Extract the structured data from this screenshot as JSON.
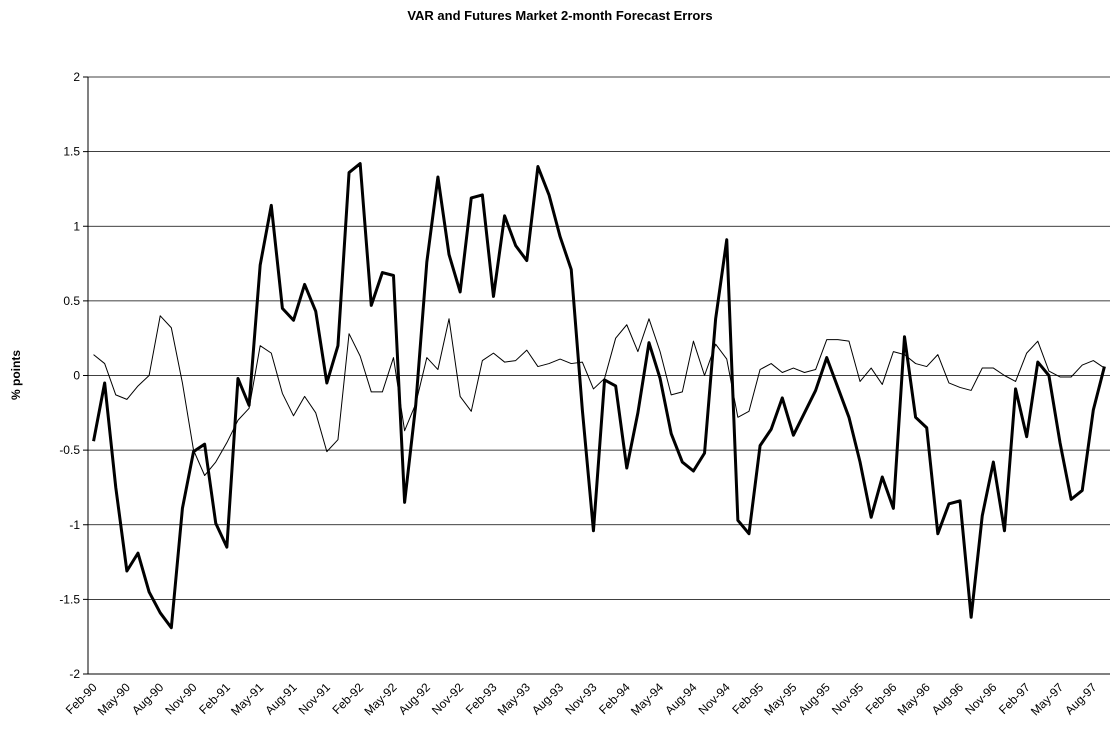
{
  "chart_data": {
    "type": "line",
    "title": "VAR and Futures Market 2-month Forecast Errors",
    "y_label": "% points",
    "categories": [
      "Feb-90",
      null,
      null,
      "May-90",
      null,
      null,
      "Aug-90",
      null,
      null,
      "Nov-90",
      null,
      null,
      "Feb-91",
      null,
      null,
      "May-91",
      null,
      null,
      "Aug-91",
      null,
      null,
      "Nov-91",
      null,
      null,
      "Feb-92",
      null,
      null,
      "May-92",
      null,
      null,
      "Aug-92",
      null,
      null,
      "Nov-92",
      null,
      null,
      "Feb-93",
      null,
      null,
      "May-93",
      null,
      null,
      "Aug-93",
      null,
      null,
      "Nov-93",
      null,
      null,
      "Feb-94",
      null,
      null,
      "May-94",
      null,
      null,
      "Aug-94",
      null,
      null,
      "Nov-94",
      null,
      null,
      "Feb-95",
      null,
      null,
      "May-95",
      null,
      null,
      "Aug-95",
      null,
      null,
      "Nov-95",
      null,
      null,
      "Feb-96",
      null,
      null,
      "May-96",
      null,
      null,
      "Aug-96",
      null,
      null,
      "Nov-96",
      null,
      null,
      "Feb-97",
      null,
      null,
      "May-97",
      null,
      null,
      "Aug-97",
      null
    ],
    "series": [
      {
        "color": "#000000",
        "width": 3,
        "values": [
          -0.44,
          -0.05,
          -0.75,
          -1.31,
          -1.19,
          -1.45,
          -1.59,
          -1.69,
          -0.89,
          -0.51,
          -0.46,
          -0.99,
          -1.15,
          -0.02,
          -0.2,
          0.74,
          1.14,
          0.45,
          0.37,
          0.61,
          0.43,
          -0.05,
          0.2,
          1.36,
          1.42,
          0.47,
          0.69,
          0.67,
          -0.85,
          -0.2,
          0.76,
          1.33,
          0.81,
          0.56,
          1.19,
          1.21,
          0.53,
          1.07,
          0.87,
          0.77,
          1.4,
          1.21,
          0.93,
          0.71,
          -0.23,
          -1.04,
          -0.03,
          -0.07,
          -0.62,
          -0.25,
          0.22,
          -0.02,
          -0.39,
          -0.58,
          -0.64,
          -0.52,
          0.38,
          0.91,
          -0.97,
          -1.06,
          -0.47,
          -0.36,
          -0.15,
          -0.4,
          -0.25,
          -0.1,
          0.12,
          -0.08,
          -0.28,
          -0.58,
          -0.95,
          -0.68,
          -0.89,
          0.26,
          -0.28,
          -0.35,
          -1.06,
          -0.86,
          -0.84,
          -1.62,
          -0.94,
          -0.58,
          -1.04,
          -0.09,
          -0.41,
          0.09,
          0.0,
          -0.45,
          -0.83,
          -0.77,
          -0.23,
          0.06
        ]
      },
      {
        "color": "#000000",
        "width": 1,
        "values": [
          0.14,
          0.08,
          -0.13,
          -0.16,
          -0.07,
          0.0,
          0.4,
          0.32,
          -0.05,
          -0.5,
          -0.67,
          -0.58,
          -0.45,
          -0.3,
          -0.22,
          0.2,
          0.15,
          -0.12,
          -0.27,
          -0.14,
          -0.25,
          -0.51,
          -0.43,
          0.28,
          0.13,
          -0.11,
          -0.11,
          0.12,
          -0.37,
          -0.19,
          0.12,
          0.04,
          0.38,
          -0.14,
          -0.24,
          0.1,
          0.15,
          0.09,
          0.1,
          0.17,
          0.06,
          0.08,
          0.11,
          0.08,
          0.09,
          -0.09,
          -0.02,
          0.25,
          0.34,
          0.16,
          0.38,
          0.16,
          -0.13,
          -0.11,
          0.23,
          0.0,
          0.21,
          0.11,
          -0.28,
          -0.24,
          0.04,
          0.08,
          0.02,
          0.05,
          0.02,
          0.04,
          0.24,
          0.24,
          0.23,
          -0.04,
          0.05,
          -0.06,
          0.16,
          0.14,
          0.08,
          0.06,
          0.14,
          -0.05,
          -0.08,
          -0.1,
          0.05,
          0.05,
          0.0,
          -0.04,
          0.15,
          0.23,
          0.03,
          -0.01,
          -0.01,
          0.07,
          0.1,
          0.05
        ]
      }
    ],
    "ylim": [
      -2,
      2
    ],
    "yticks": [
      -2,
      -1.5,
      -1,
      -0.5,
      0,
      0.5,
      1,
      1.5,
      2
    ],
    "grid": true
  }
}
